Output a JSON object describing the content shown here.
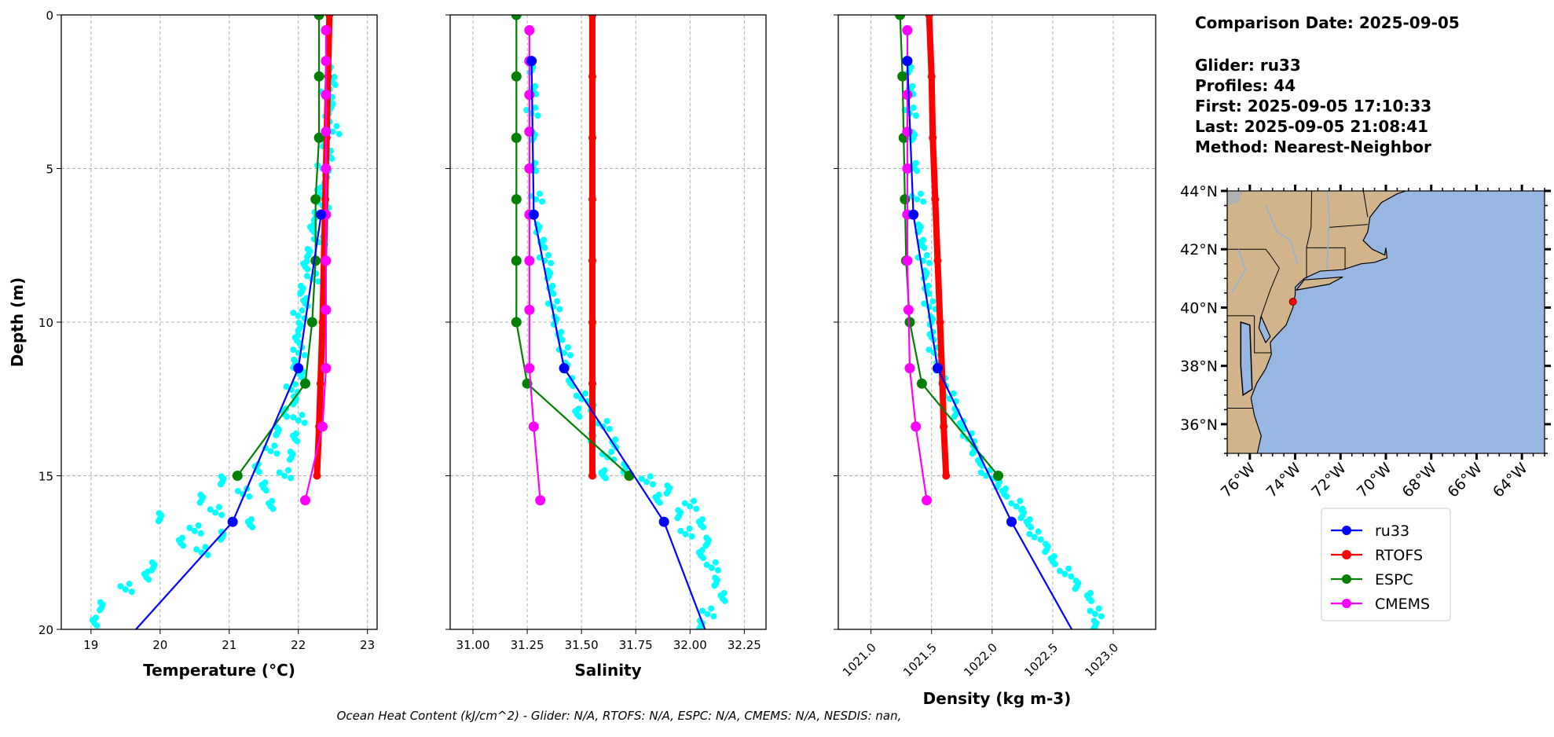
{
  "info": {
    "comparison_date": "Comparison Date: 2025-09-05",
    "glider": "Glider: ru33",
    "profiles": "Profiles: 44",
    "first": "First: 2025-09-05 17:10:33",
    "last": "Last: 2025-09-05 21:08:41",
    "method": "Method: Nearest-Neighbor"
  },
  "footnote": "Ocean Heat Content (kJ/cm^2) - Glider: N/A,  RTOFS: N/A,  ESPC: N/A,  CMEMS: N/A,  NESDIS: nan,",
  "colors": {
    "ru33": "#0000ff",
    "RTOFS": "#ff0000",
    "ESPC": "#008000",
    "CMEMS": "#ff00ff",
    "glider_scatter": "#00ffff",
    "land": "#d2b48c",
    "ocean": "#97b6e1",
    "grid": "#b0b0b0"
  },
  "chart_data": [
    {
      "type": "scatter",
      "id": "temperature",
      "xlabel": "Temperature (°C)",
      "ylabel": "Depth (m)",
      "xlim": [
        18.57,
        23.14
      ],
      "ylim": [
        20,
        0
      ],
      "xticks": [
        19,
        20,
        21,
        22,
        23
      ],
      "xtick_labels": [
        "19",
        "20",
        "21",
        "22",
        "23"
      ],
      "yticks": [
        0,
        5,
        10,
        15,
        20
      ],
      "ytick_labels": [
        "0",
        "5",
        "10",
        "15",
        "20"
      ],
      "grid": true,
      "glider_scatter": [
        [
          1.8,
          22.45
        ],
        [
          2.2,
          22.5
        ],
        [
          2.6,
          22.4
        ],
        [
          3,
          22.48
        ],
        [
          3.4,
          22.42
        ],
        [
          3.8,
          22.5
        ],
        [
          4.2,
          22.38
        ],
        [
          4.6,
          22.45
        ],
        [
          5,
          22.35
        ],
        [
          5.4,
          22.4
        ],
        [
          5.8,
          22.3
        ],
        [
          6.2,
          22.35
        ],
        [
          6.6,
          22.25
        ],
        [
          7,
          22.2
        ],
        [
          7.4,
          22.3
        ],
        [
          7.8,
          22.15
        ],
        [
          8.2,
          22.1
        ],
        [
          8.6,
          22.2
        ],
        [
          9,
          22.05
        ],
        [
          9.4,
          22.1
        ],
        [
          9.8,
          22.0
        ],
        [
          10.2,
          22.02
        ],
        [
          10.6,
          21.98
        ],
        [
          11,
          22.0
        ],
        [
          11.4,
          21.95
        ],
        [
          11.8,
          22.05
        ],
        [
          12.2,
          21.9
        ],
        [
          12.6,
          21.95
        ],
        [
          13,
          21.8
        ],
        [
          13.2,
          22.0
        ],
        [
          13.6,
          21.7
        ],
        [
          13.8,
          21.95
        ],
        [
          14.2,
          21.6
        ],
        [
          14.4,
          21.9
        ],
        [
          14.8,
          21.4
        ],
        [
          15,
          21.8
        ],
        [
          15.2,
          20.9
        ],
        [
          15.4,
          21.5
        ],
        [
          15.6,
          21.2
        ],
        [
          15.8,
          20.6
        ],
        [
          16,
          21.6
        ],
        [
          16.2,
          20.8
        ],
        [
          16.4,
          20.0
        ],
        [
          16.6,
          21.3
        ],
        [
          16.8,
          20.5
        ],
        [
          17,
          20.9
        ],
        [
          17.2,
          20.3
        ],
        [
          17.5,
          20.6
        ],
        [
          18,
          19.9
        ],
        [
          18.3,
          19.8
        ],
        [
          18.7,
          19.5
        ],
        [
          19.3,
          19.15
        ],
        [
          19.8,
          19.05
        ]
      ],
      "series": [
        {
          "name": "RTOFS",
          "depth": [
            0,
            2,
            4,
            6,
            8,
            10,
            12,
            13.4,
            15
          ],
          "values": [
            22.45,
            22.43,
            22.41,
            22.39,
            22.37,
            22.35,
            22.32,
            22.3,
            22.27
          ]
        },
        {
          "name": "ESPC",
          "depth": [
            0,
            2,
            4,
            6,
            8,
            10,
            12,
            15
          ],
          "values": [
            22.3,
            22.3,
            22.3,
            22.25,
            22.25,
            22.2,
            22.1,
            21.12
          ]
        },
        {
          "name": "CMEMS",
          "depth": [
            0.5,
            1.5,
            2.6,
            3.8,
            5,
            6.5,
            8,
            9.6,
            11.5,
            13.4,
            15.8
          ],
          "values": [
            22.4,
            22.4,
            22.4,
            22.4,
            22.4,
            22.4,
            22.4,
            22.4,
            22.4,
            22.35,
            22.1
          ]
        },
        {
          "name": "ru33",
          "depth": [
            6.5,
            11.5,
            16.5,
            21.5
          ],
          "values": [
            22.33,
            22.0,
            21.05,
            19.05
          ]
        }
      ]
    },
    {
      "type": "scatter",
      "id": "salinity",
      "xlabel": "Salinity",
      "ylabel": "",
      "xlim": [
        30.895,
        32.35
      ],
      "ylim": [
        20,
        0
      ],
      "xticks": [
        31.0,
        31.25,
        31.5,
        31.75,
        32.0,
        32.25
      ],
      "xtick_labels": [
        "31.00",
        "31.25",
        "31.50",
        "31.75",
        "32.00",
        "32.25"
      ],
      "yticks": [
        0,
        5,
        10,
        15,
        20
      ],
      "grid": true,
      "glider_scatter": [
        [
          1.8,
          31.27
        ],
        [
          2.5,
          31.28
        ],
        [
          3.2,
          31.27
        ],
        [
          4,
          31.28
        ],
        [
          5,
          31.28
        ],
        [
          6,
          31.29
        ],
        [
          7,
          31.3
        ],
        [
          7.5,
          31.32
        ],
        [
          8,
          31.33
        ],
        [
          8.5,
          31.35
        ],
        [
          9,
          31.36
        ],
        [
          9.5,
          31.37
        ],
        [
          10,
          31.38
        ],
        [
          10.5,
          31.4
        ],
        [
          11,
          31.42
        ],
        [
          11.5,
          31.43
        ],
        [
          12,
          31.45
        ],
        [
          12.5,
          31.5
        ],
        [
          12.8,
          31.55
        ],
        [
          13,
          31.48
        ],
        [
          13.4,
          31.6
        ],
        [
          13.8,
          31.55
        ],
        [
          14,
          31.65
        ],
        [
          14.4,
          31.62
        ],
        [
          14.8,
          31.7
        ],
        [
          15,
          31.6
        ],
        [
          15.2,
          31.8
        ],
        [
          15.5,
          31.9
        ],
        [
          15.8,
          31.85
        ],
        [
          16,
          32.0
        ],
        [
          16.3,
          31.95
        ],
        [
          16.6,
          32.05
        ],
        [
          16.9,
          31.98
        ],
        [
          17.2,
          32.08
        ],
        [
          17.6,
          32.05
        ],
        [
          18,
          32.1
        ],
        [
          18.5,
          32.12
        ],
        [
          19,
          32.15
        ],
        [
          19.5,
          32.08
        ],
        [
          19.9,
          32.05
        ]
      ],
      "series": [
        {
          "name": "RTOFS",
          "depth": [
            0,
            2,
            4,
            6,
            8,
            10,
            12,
            15
          ],
          "values": [
            31.55,
            31.55,
            31.55,
            31.55,
            31.55,
            31.55,
            31.55,
            31.55
          ]
        },
        {
          "name": "ESPC",
          "depth": [
            0,
            2,
            4,
            6,
            8,
            10,
            12,
            15
          ],
          "values": [
            31.2,
            31.2,
            31.2,
            31.2,
            31.2,
            31.2,
            31.25,
            31.72
          ]
        },
        {
          "name": "CMEMS",
          "depth": [
            0.5,
            1.5,
            2.6,
            3.8,
            5,
            6.5,
            8,
            9.6,
            11.5,
            13.4,
            15.8
          ],
          "values": [
            31.26,
            31.26,
            31.26,
            31.26,
            31.26,
            31.26,
            31.26,
            31.26,
            31.26,
            31.28,
            31.31
          ]
        },
        {
          "name": "ru33",
          "depth": [
            1.5,
            6.5,
            11.5,
            16.5,
            21.5
          ],
          "values": [
            31.27,
            31.28,
            31.42,
            31.88,
            32.15
          ]
        }
      ]
    },
    {
      "type": "scatter",
      "id": "density",
      "xlabel": "Density (kg m-3)",
      "ylabel": "",
      "xlim": [
        1020.73,
        1023.35
      ],
      "ylim": [
        20,
        0
      ],
      "xticks": [
        1021.0,
        1021.5,
        1022.0,
        1022.5,
        1023.0
      ],
      "xtick_labels": [
        "1021.0",
        "1021.5",
        "1022.0",
        "1022.5",
        "1023.0"
      ],
      "yticks": [
        0,
        5,
        10,
        15,
        20
      ],
      "grid": true,
      "glider_scatter": [
        [
          1.8,
          1021.32
        ],
        [
          2.5,
          1021.33
        ],
        [
          3.2,
          1021.32
        ],
        [
          4,
          1021.35
        ],
        [
          5,
          1021.36
        ],
        [
          6,
          1021.38
        ],
        [
          7,
          1021.4
        ],
        [
          7.5,
          1021.42
        ],
        [
          8,
          1021.43
        ],
        [
          8.5,
          1021.45
        ],
        [
          9,
          1021.46
        ],
        [
          9.5,
          1021.48
        ],
        [
          10,
          1021.5
        ],
        [
          10.5,
          1021.5
        ],
        [
          11,
          1021.52
        ],
        [
          11.5,
          1021.55
        ],
        [
          12,
          1021.6
        ],
        [
          12.5,
          1021.65
        ],
        [
          13,
          1021.7
        ],
        [
          13.4,
          1021.75
        ],
        [
          13.8,
          1021.8
        ],
        [
          14.2,
          1021.85
        ],
        [
          14.6,
          1021.9
        ],
        [
          15,
          1021.95
        ],
        [
          15.3,
          1022.05
        ],
        [
          15.6,
          1022.1
        ],
        [
          16,
          1022.2
        ],
        [
          16.3,
          1022.25
        ],
        [
          16.6,
          1022.3
        ],
        [
          17,
          1022.35
        ],
        [
          17.4,
          1022.45
        ],
        [
          17.8,
          1022.5
        ],
        [
          18.2,
          1022.6
        ],
        [
          18.6,
          1022.7
        ],
        [
          19,
          1022.8
        ],
        [
          19.5,
          1022.85
        ],
        [
          19.9,
          1022.85
        ]
      ],
      "series": [
        {
          "name": "RTOFS",
          "depth": [
            0,
            2,
            4,
            6,
            8,
            10,
            12,
            13.4,
            15
          ],
          "values": [
            1021.48,
            1021.5,
            1021.51,
            1021.53,
            1021.55,
            1021.57,
            1021.59,
            1021.6,
            1021.62
          ]
        },
        {
          "name": "ESPC",
          "depth": [
            0,
            2,
            4,
            6,
            8,
            10,
            12,
            15
          ],
          "values": [
            1021.24,
            1021.26,
            1021.27,
            1021.28,
            1021.29,
            1021.32,
            1021.42,
            1022.05
          ]
        },
        {
          "name": "CMEMS",
          "depth": [
            0.5,
            1.5,
            2.6,
            3.8,
            5,
            6.5,
            8,
            9.6,
            11.5,
            13.4,
            15.8
          ],
          "values": [
            1021.3,
            1021.3,
            1021.3,
            1021.3,
            1021.3,
            1021.3,
            1021.3,
            1021.31,
            1021.32,
            1021.37,
            1021.46
          ]
        },
        {
          "name": "ru33",
          "depth": [
            1.5,
            6.5,
            11.5,
            16.5,
            21.5
          ],
          "values": [
            1021.3,
            1021.35,
            1021.55,
            1022.16,
            1022.87
          ]
        }
      ]
    }
  ],
  "map": {
    "lat_ticks": [
      36,
      38,
      40,
      42,
      44
    ],
    "lat_labels": [
      "36°N",
      "38°N",
      "40°N",
      "42°N",
      "44°N"
    ],
    "lon_ticks": [
      -76,
      -74,
      -72,
      -70,
      -68,
      -66,
      -64
    ],
    "lon_labels": [
      "76°W",
      "74°W",
      "72°W",
      "70°W",
      "68°W",
      "66°W",
      "64°W"
    ],
    "extent": {
      "lon": [
        -77,
        -63
      ],
      "lat": [
        35,
        44
      ]
    },
    "glider_position": {
      "lon": -74.1,
      "lat": 40.2
    }
  },
  "legend": [
    {
      "name": "ru33",
      "label": "ru33"
    },
    {
      "name": "RTOFS",
      "label": "RTOFS"
    },
    {
      "name": "ESPC",
      "label": "ESPC"
    },
    {
      "name": "CMEMS",
      "label": "CMEMS"
    }
  ]
}
